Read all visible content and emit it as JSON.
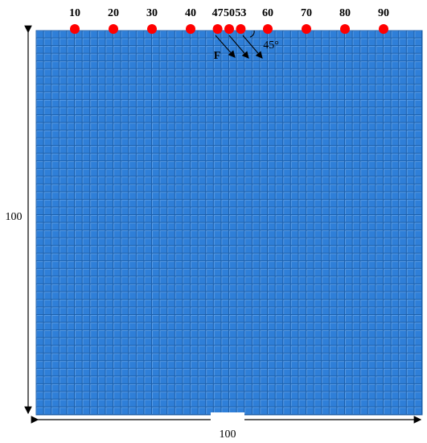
{
  "top_points": [
    10,
    20,
    30,
    40,
    47,
    50,
    53,
    60,
    70,
    80,
    90
  ],
  "force_label": "F",
  "angle_label": "45°",
  "height": 100,
  "width": 100
}
